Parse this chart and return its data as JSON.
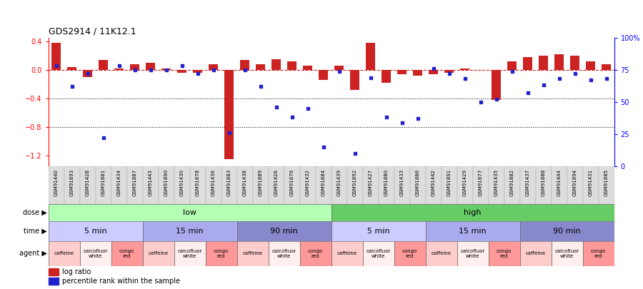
{
  "title": "GDS2914 / 11K12.1",
  "samples": [
    "GSM91440",
    "GSM91893",
    "GSM91428",
    "GSM91881",
    "GSM91434",
    "GSM91887",
    "GSM91443",
    "GSM91890",
    "GSM91430",
    "GSM91878",
    "GSM91436",
    "GSM91883",
    "GSM91438",
    "GSM91889",
    "GSM91426",
    "GSM91876",
    "GSM91432",
    "GSM91884",
    "GSM91439",
    "GSM91892",
    "GSM91427",
    "GSM91880",
    "GSM91433",
    "GSM91886",
    "GSM91442",
    "GSM91891",
    "GSM91429",
    "GSM91877",
    "GSM91435",
    "GSM91882",
    "GSM91437",
    "GSM91888",
    "GSM91444",
    "GSM91894",
    "GSM91431",
    "GSM91885"
  ],
  "log_ratio": [
    0.38,
    0.04,
    -0.1,
    0.14,
    0.02,
    0.08,
    0.1,
    0.02,
    -0.04,
    -0.04,
    0.08,
    -1.25,
    0.14,
    0.08,
    0.15,
    0.12,
    0.06,
    -0.14,
    0.06,
    -0.28,
    0.38,
    -0.18,
    -0.06,
    -0.08,
    -0.06,
    -0.04,
    0.02,
    0.0,
    -0.42,
    0.12,
    0.18,
    0.2,
    0.22,
    0.2,
    0.12,
    0.08
  ],
  "percentile": [
    78,
    62,
    72,
    22,
    78,
    75,
    75,
    75,
    78,
    72,
    75,
    26,
    75,
    62,
    46,
    38,
    45,
    15,
    74,
    10,
    69,
    38,
    34,
    37,
    76,
    72,
    68,
    50,
    52,
    74,
    57,
    63,
    68,
    72,
    67,
    68
  ],
  "dose_colors": [
    "#b3ffb3",
    "#66cc66"
  ],
  "dose_labels": [
    "low",
    "high"
  ],
  "dose_splits": [
    0,
    18,
    36
  ],
  "time_colors": [
    "#ccccff",
    "#aaaaee",
    "#8888cc"
  ],
  "time_data": [
    [
      0,
      6,
      "5 min"
    ],
    [
      6,
      12,
      "15 min"
    ],
    [
      12,
      18,
      "90 min"
    ],
    [
      18,
      24,
      "5 min"
    ],
    [
      24,
      30,
      "15 min"
    ],
    [
      30,
      36,
      "90 min"
    ]
  ],
  "agent_colors": [
    "#ffcccc",
    "#ffeeee",
    "#ff9999"
  ],
  "agent_labels": [
    "caffeine",
    "calcofluor\nwhite",
    "congo\nred"
  ],
  "bar_color": "#cc2222",
  "dot_color": "#2222cc",
  "ylim_left": [
    -1.35,
    0.45
  ],
  "ylim_right": [
    0,
    100
  ],
  "yticks_left": [
    -1.2,
    -0.8,
    -0.4,
    0.0,
    0.4
  ],
  "yticks_right": [
    0,
    25,
    50,
    75,
    100
  ],
  "ytick_labels_right": [
    "0",
    "25",
    "50",
    "75",
    "100%"
  ],
  "hline_vals": [
    -0.4,
    -0.8
  ],
  "background_color": "#ffffff"
}
